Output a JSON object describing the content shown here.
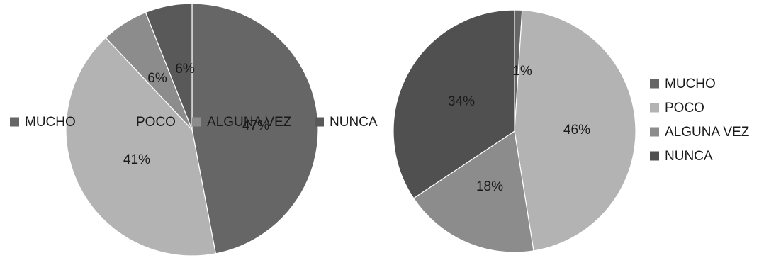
{
  "chart_data": [
    {
      "type": "pie",
      "title": "",
      "categories": [
        "MUCHO",
        "POCO",
        "ALGUNA VEZ",
        "NUNCA"
      ],
      "values": [
        47,
        41,
        6,
        6
      ],
      "labels": [
        "47%",
        "41%",
        "6%",
        "6%"
      ],
      "colors": [
        "#666666",
        "#b3b3b3",
        "#8c8c8c",
        "#595959"
      ],
      "legend": {
        "position": "center-overlay",
        "items": [
          "MUCHO",
          "POCO",
          "ALGUNA VEZ",
          "NUNCA"
        ]
      }
    },
    {
      "type": "pie",
      "title": "",
      "categories": [
        "MUCHO",
        "POCO",
        "ALGUNA VEZ",
        "NUNCA"
      ],
      "values": [
        1,
        46,
        18,
        34
      ],
      "labels": [
        "1%",
        "46%",
        "18%",
        "34%"
      ],
      "colors": [
        "#666666",
        "#b3b3b3",
        "#8c8c8c",
        "#505050"
      ],
      "legend": {
        "position": "right",
        "items": [
          "MUCHO",
          "POCO",
          "ALGUNA VEZ",
          "NUNCA"
        ]
      }
    }
  ]
}
